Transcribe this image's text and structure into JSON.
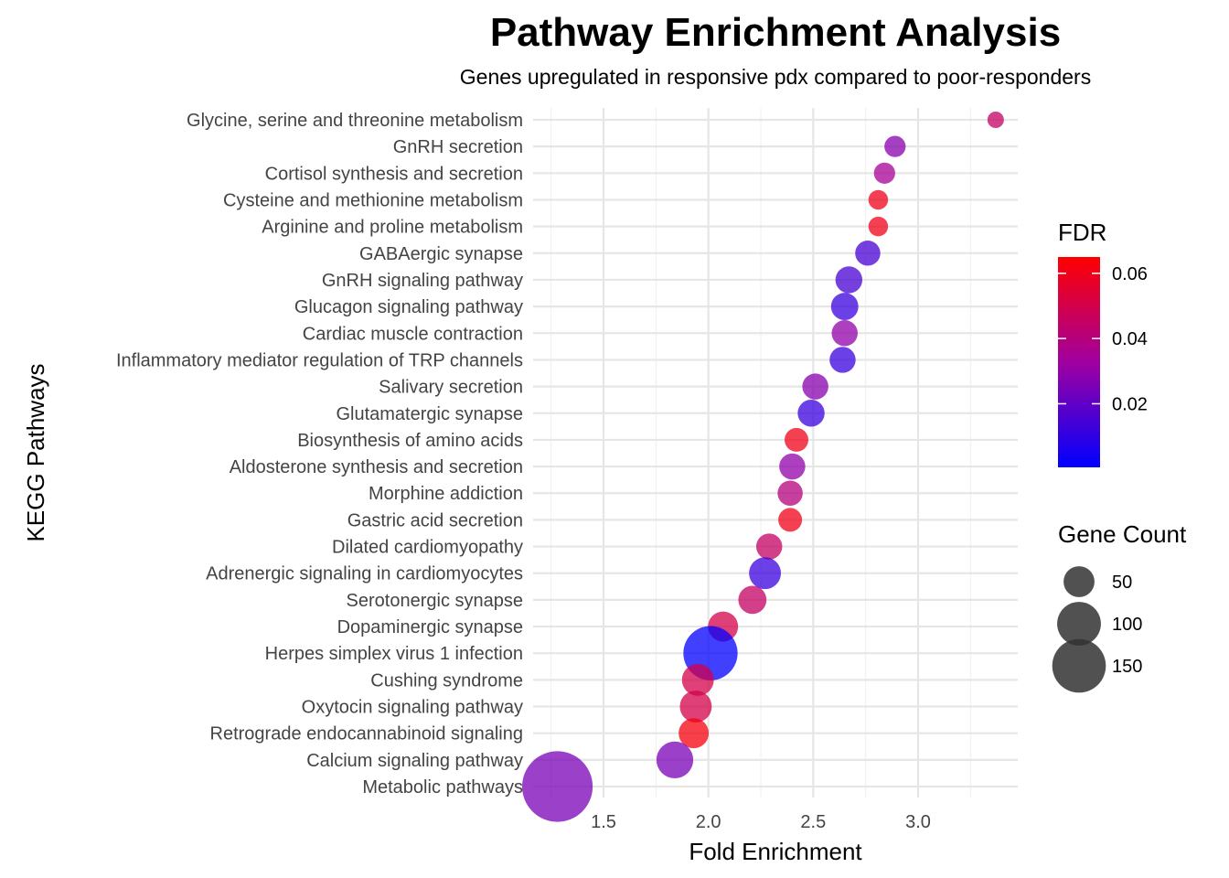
{
  "chart_data": {
    "type": "scatter",
    "title": "Pathway Enrichment Analysis",
    "subtitle": "Genes upregulated in responsive pdx compared to poor-responders",
    "xlabel": "Fold Enrichment",
    "ylabel": "KEGG Pathways",
    "xlim": [
      1.25,
      3.4
    ],
    "xticks": [
      1.5,
      2.0,
      2.5,
      3.0
    ],
    "xtick_labels": [
      "1.5",
      "2.0",
      "2.5",
      "3.0"
    ],
    "grid": true,
    "colors": {
      "low": "#0000ff",
      "mid": "#a000a0",
      "high": "#ff0000"
    },
    "categories": [
      "Glycine, serine and threonine metabolism",
      "GnRH secretion",
      "Cortisol synthesis and secretion",
      "Cysteine and methionine metabolism",
      "Arginine and proline metabolism",
      "GABAergic synapse",
      "GnRH signaling pathway",
      "Glucagon signaling pathway",
      "Cardiac muscle contraction",
      "Inflammatory mediator regulation of TRP channels",
      "Salivary secretion",
      "Glutamatergic synapse",
      "Biosynthesis of amino acids",
      "Aldosterone synthesis and secretion",
      "Morphine addiction",
      "Gastric acid secretion",
      "Dilated cardiomyopathy",
      "Adrenergic signaling in cardiomyocytes",
      "Serotonergic synapse",
      "Dopaminergic synapse",
      "Herpes simplex virus 1 infection",
      "Cushing syndrome",
      "Oxytocin signaling pathway",
      "Retrograde endocannabinoid signaling",
      "Calcium signaling pathway",
      "Metabolic pathways"
    ],
    "fold_enrichment": [
      3.37,
      2.89,
      2.84,
      2.81,
      2.81,
      2.76,
      2.67,
      2.65,
      2.65,
      2.64,
      2.51,
      2.49,
      2.42,
      2.4,
      2.39,
      2.39,
      2.29,
      2.27,
      2.21,
      2.07,
      2.01,
      1.95,
      1.94,
      1.93,
      1.84,
      1.28
    ],
    "fdr": [
      0.045,
      0.028,
      0.035,
      0.06,
      0.06,
      0.015,
      0.015,
      0.012,
      0.03,
      0.012,
      0.028,
      0.012,
      0.06,
      0.03,
      0.04,
      0.06,
      0.045,
      0.012,
      0.045,
      0.05,
      0.001,
      0.05,
      0.05,
      0.062,
      0.025,
      0.025
    ],
    "gene_count": [
      12,
      20,
      20,
      17,
      17,
      28,
      32,
      33,
      30,
      30,
      30,
      32,
      25,
      30,
      28,
      25,
      30,
      45,
      35,
      40,
      130,
      45,
      45,
      40,
      60,
      220
    ],
    "legend": {
      "color_title": "FDR",
      "color_range": [
        0.0005,
        0.065
      ],
      "color_ticks": [
        0.02,
        0.04,
        0.06
      ],
      "color_tick_labels": [
        "0.02",
        "0.04",
        "0.06"
      ],
      "size_title": "Gene Count",
      "size_ticks": [
        50,
        100,
        150
      ],
      "size_tick_labels": [
        "50",
        "100",
        "150"
      ]
    }
  }
}
